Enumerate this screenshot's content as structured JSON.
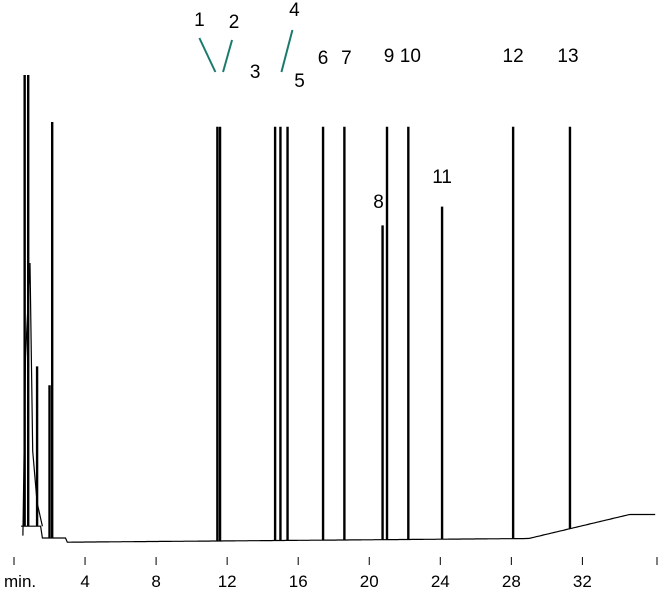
{
  "chart_data": {
    "type": "line",
    "x_unit_label": "min.",
    "x_ticks": [
      4,
      8,
      12,
      16,
      20,
      24,
      28,
      32
    ],
    "x_range": [
      0,
      36.2
    ],
    "y_range": [
      0,
      100
    ],
    "grid": false,
    "colors": {
      "trace": "#000000",
      "leader": "#1a7a6e"
    },
    "peaks": [
      {
        "label": "1",
        "time": 11.45,
        "height": 89
      },
      {
        "label": "2",
        "time": 11.6,
        "height": 89
      },
      {
        "label": "3",
        "time": 14.7,
        "height": 89
      },
      {
        "label": "4",
        "time": 15.0,
        "height": 89
      },
      {
        "label": "5",
        "time": 15.4,
        "height": 89
      },
      {
        "label": "6",
        "time": 17.4,
        "height": 89
      },
      {
        "label": "7",
        "time": 18.6,
        "height": 89
      },
      {
        "label": "8",
        "time": 20.75,
        "height": 68
      },
      {
        "label": "9",
        "time": 21.0,
        "height": 89
      },
      {
        "label": "10",
        "time": 22.2,
        "height": 89
      },
      {
        "label": "11",
        "time": 24.1,
        "height": 72
      },
      {
        "label": "12",
        "time": 28.1,
        "height": 89
      },
      {
        "label": "13",
        "time": 31.3,
        "height": 89
      }
    ],
    "unlabeled_peaks": [
      {
        "time": 0.6,
        "height": 100
      },
      {
        "time": 0.8,
        "height": 100
      },
      {
        "time": 1.3,
        "height": 38
      },
      {
        "time": 2.0,
        "height": 34
      },
      {
        "time": 2.15,
        "height": 90
      }
    ]
  }
}
